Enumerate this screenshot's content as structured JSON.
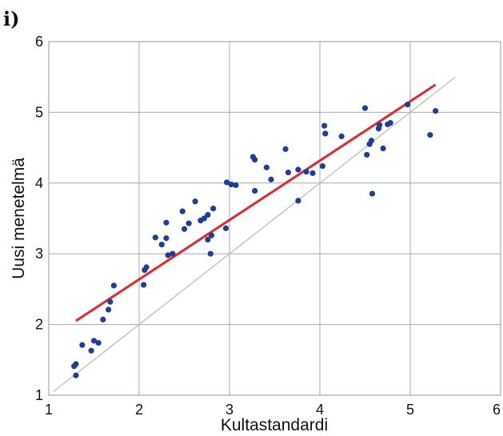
{
  "panel_label": "i)",
  "chart_data": {
    "type": "scatter",
    "xlabel": "Kultastandardi",
    "ylabel": "Uusi menetelmä",
    "xlim": [
      1,
      6
    ],
    "ylim": [
      1,
      6
    ],
    "xticks": [
      "1",
      "2",
      "3",
      "4",
      "5",
      "6"
    ],
    "yticks": [
      "1",
      "2",
      "3",
      "4",
      "5",
      "6"
    ],
    "grid": true,
    "points": [
      [
        1.28,
        1.41
      ],
      [
        1.3,
        1.44
      ],
      [
        1.3,
        1.28
      ],
      [
        1.37,
        1.71
      ],
      [
        1.47,
        1.63
      ],
      [
        1.5,
        1.77
      ],
      [
        1.55,
        1.74
      ],
      [
        1.6,
        2.07
      ],
      [
        1.66,
        2.21
      ],
      [
        1.68,
        2.32
      ],
      [
        1.72,
        2.55
      ],
      [
        2.05,
        2.56
      ],
      [
        2.06,
        2.77
      ],
      [
        2.08,
        2.81
      ],
      [
        2.18,
        3.23
      ],
      [
        2.25,
        3.13
      ],
      [
        2.3,
        3.44
      ],
      [
        2.3,
        3.22
      ],
      [
        2.32,
        2.98
      ],
      [
        2.37,
        3.0
      ],
      [
        2.48,
        3.6
      ],
      [
        2.5,
        3.35
      ],
      [
        2.55,
        3.43
      ],
      [
        2.62,
        3.74
      ],
      [
        2.68,
        3.47
      ],
      [
        2.72,
        3.5
      ],
      [
        2.76,
        3.55
      ],
      [
        2.76,
        3.2
      ],
      [
        2.8,
        3.26
      ],
      [
        2.79,
        3.0
      ],
      [
        2.82,
        3.64
      ],
      [
        2.96,
        3.36
      ],
      [
        2.97,
        4.01
      ],
      [
        3.02,
        3.98
      ],
      [
        3.07,
        3.97
      ],
      [
        3.26,
        4.37
      ],
      [
        3.28,
        4.33
      ],
      [
        3.28,
        3.89
      ],
      [
        3.41,
        4.22
      ],
      [
        3.46,
        4.05
      ],
      [
        3.62,
        4.48
      ],
      [
        3.65,
        4.15
      ],
      [
        3.76,
        3.75
      ],
      [
        3.76,
        4.19
      ],
      [
        3.85,
        4.16
      ],
      [
        3.92,
        4.14
      ],
      [
        4.03,
        4.24
      ],
      [
        4.05,
        4.81
      ],
      [
        4.06,
        4.7
      ],
      [
        4.24,
        4.66
      ],
      [
        4.5,
        5.06
      ],
      [
        4.52,
        4.4
      ],
      [
        4.55,
        4.55
      ],
      [
        4.57,
        4.6
      ],
      [
        4.58,
        3.85
      ],
      [
        4.65,
        4.77
      ],
      [
        4.66,
        4.82
      ],
      [
        4.7,
        4.49
      ],
      [
        4.75,
        4.83
      ],
      [
        4.78,
        4.85
      ],
      [
        4.97,
        5.11
      ],
      [
        5.22,
        4.68
      ],
      [
        5.28,
        5.02
      ]
    ],
    "lines": [
      {
        "role": "regression",
        "color": "#e8262b",
        "points": [
          [
            1.3,
            2.05
          ],
          [
            5.28,
            5.39
          ]
        ]
      },
      {
        "role": "identity",
        "color": "#c4c4c4",
        "points": [
          [
            1.05,
            1.05
          ],
          [
            5.5,
            5.5
          ]
        ]
      }
    ],
    "point_color": "#1d3e9c"
  }
}
